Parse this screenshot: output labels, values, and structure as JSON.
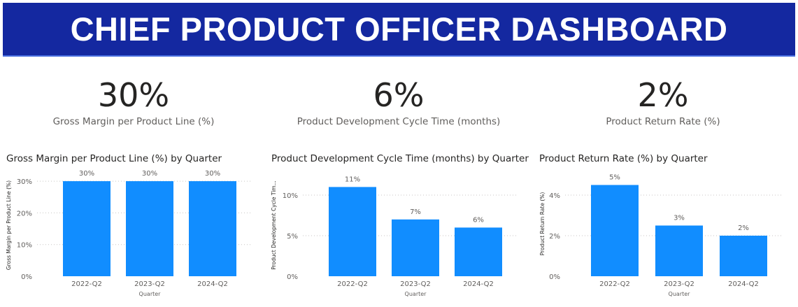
{
  "header": {
    "title": "CHIEF PRODUCT OFFICER DASHBOARD"
  },
  "kpis": [
    {
      "value": "30%",
      "label": "Gross Margin per Product Line (%)"
    },
    {
      "value": "6%",
      "label": "Product Development Cycle Time (months)"
    },
    {
      "value": "2%",
      "label": "Product Return Rate (%)"
    }
  ],
  "colors": {
    "banner": "#1428a0",
    "bar": "#118dff"
  },
  "chart_data": [
    {
      "type": "bar",
      "title": "Gross Margin per Product Line (%) by Quarter",
      "xlabel": "Quarter",
      "ylabel": "Gross Margin per Product Line (%)",
      "categories": [
        "2022-Q2",
        "2023-Q2",
        "2024-Q2"
      ],
      "values": [
        30,
        30,
        30
      ],
      "data_labels": [
        "30%",
        "30%",
        "30%"
      ],
      "yticks": [
        0,
        10,
        20,
        30
      ],
      "ytick_labels": [
        "0%",
        "10%",
        "20%",
        "30%"
      ],
      "ylim": [
        0,
        32
      ],
      "grid": true
    },
    {
      "type": "bar",
      "title": "Product Development Cycle Time (months) by Quarter",
      "xlabel": "Quarter",
      "ylabel": "Product Development Cycle Tim...",
      "categories": [
        "2022-Q2",
        "2023-Q2",
        "2024-Q2"
      ],
      "values": [
        11,
        7,
        6
      ],
      "data_labels": [
        "11%",
        "7%",
        "6%"
      ],
      "yticks": [
        0,
        5,
        10
      ],
      "ytick_labels": [
        "0%",
        "5%",
        "10%"
      ],
      "ylim": [
        0,
        12.5
      ],
      "grid": true
    },
    {
      "type": "bar",
      "title": "Product Return Rate (%) by Quarter",
      "xlabel": "Quarter",
      "ylabel": "Product Return Rate (%)",
      "categories": [
        "2022-Q2",
        "2023-Q2",
        "2024-Q2"
      ],
      "values": [
        4.5,
        2.5,
        2
      ],
      "data_labels": [
        "5%",
        "3%",
        "2%"
      ],
      "yticks": [
        0,
        2,
        4
      ],
      "ytick_labels": [
        "0%",
        "2%",
        "4%"
      ],
      "ylim": [
        0,
        5
      ],
      "grid": true
    }
  ]
}
